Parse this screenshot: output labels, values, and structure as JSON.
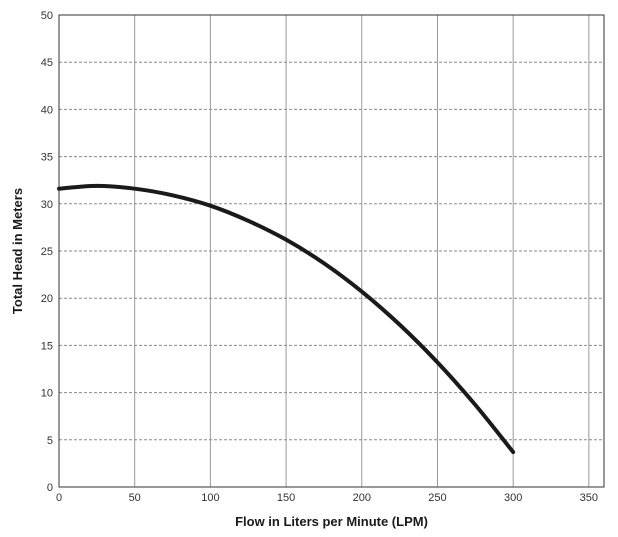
{
  "chart_data": {
    "type": "line",
    "title": "",
    "xlabel": "Flow in Liters per Minute (LPM)",
    "ylabel": "Total Head in Meters",
    "xlim": [
      0,
      360
    ],
    "ylim": [
      0,
      50
    ],
    "x_ticks": [
      0,
      50,
      100,
      150,
      200,
      250,
      300,
      350
    ],
    "y_ticks": [
      0,
      5,
      10,
      15,
      20,
      25,
      30,
      35,
      40,
      45,
      50
    ],
    "x_tick_labels": [
      "0",
      "50",
      "100",
      "150",
      "200",
      "250",
      "300",
      "350"
    ],
    "y_tick_labels": [
      "0",
      "5",
      "10",
      "15",
      "20",
      "25",
      "30",
      "35",
      "40",
      "45",
      "50"
    ],
    "grid": {
      "vertical": "solid",
      "horizontal": "dashed"
    },
    "legend": "none",
    "series": [
      {
        "color": "#1a1a1a",
        "x": [
          0,
          25,
          50,
          75,
          100,
          125,
          150,
          175,
          200,
          225,
          250,
          275,
          300
        ],
        "y": [
          31.6,
          31.9,
          31.6,
          30.9,
          29.8,
          28.2,
          26.2,
          23.7,
          20.7,
          17.2,
          13.2,
          8.7,
          3.7
        ]
      }
    ]
  }
}
